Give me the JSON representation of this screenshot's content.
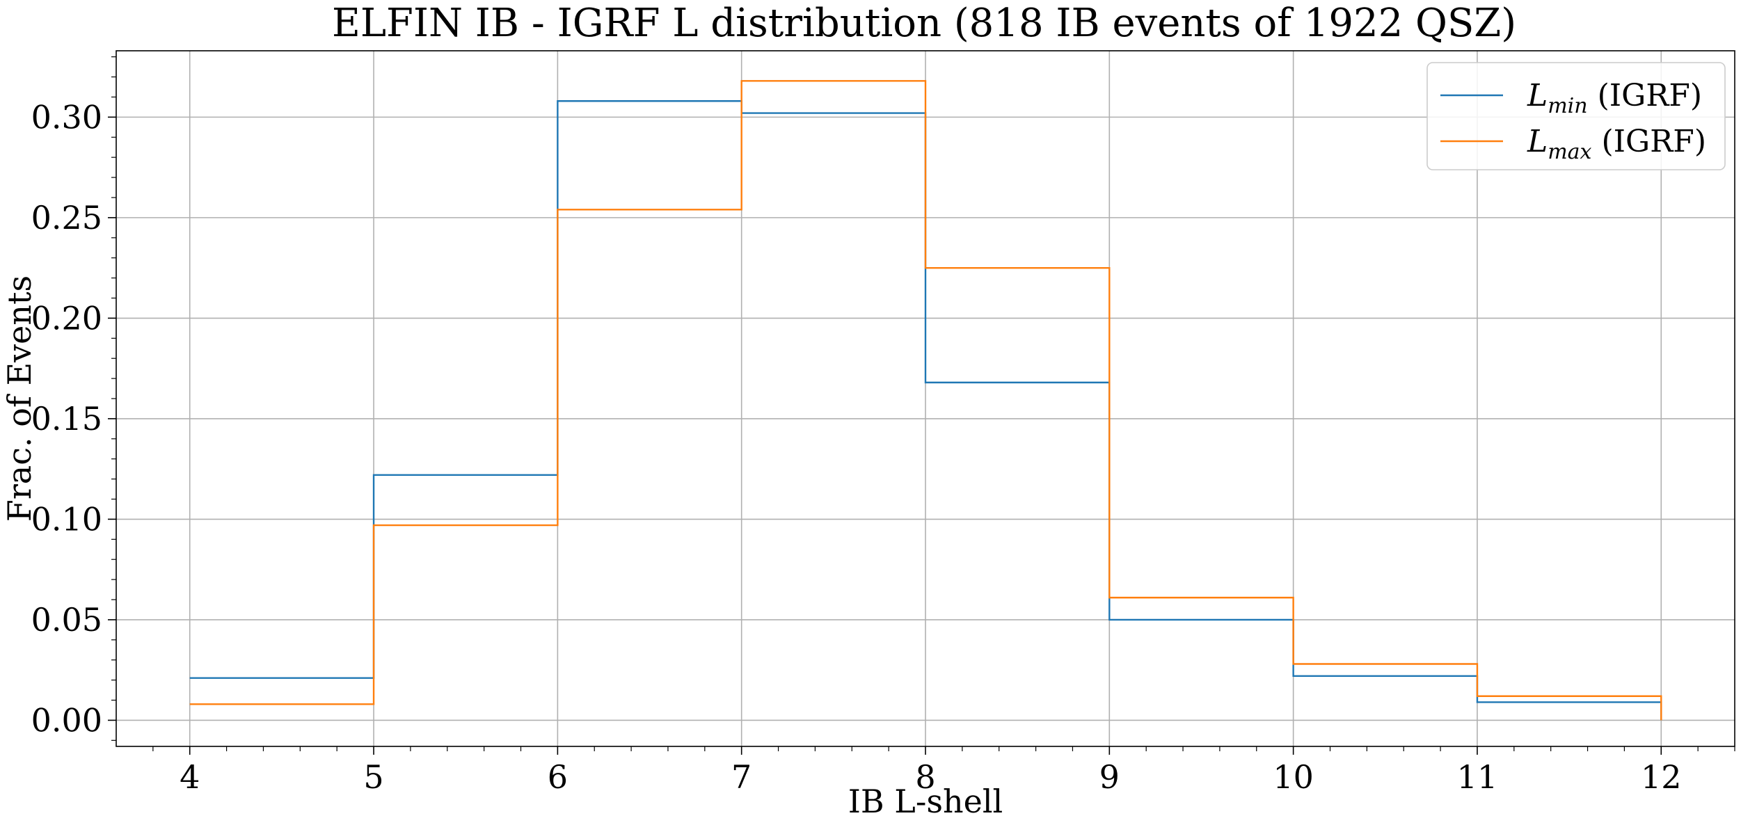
{
  "chart_data": {
    "type": "line",
    "subtype": "step-histogram",
    "title": "ELFIN IB - IGRF L distribution (818 IB events of 1922 QSZ)",
    "xlabel": "IB L-shell",
    "ylabel": "Frac. of Events",
    "xlim": [
      3.6,
      12.4
    ],
    "ylim": [
      -0.013,
      0.333
    ],
    "xticks": [
      4,
      5,
      6,
      7,
      8,
      9,
      10,
      11,
      12
    ],
    "xtick_labels": [
      "4",
      "5",
      "6",
      "7",
      "8",
      "9",
      "10",
      "11",
      "12"
    ],
    "yticks": [
      0.0,
      0.05,
      0.1,
      0.15,
      0.2,
      0.25,
      0.3
    ],
    "ytick_labels": [
      "0.00",
      "0.05",
      "0.10",
      "0.15",
      "0.20",
      "0.25",
      "0.30"
    ],
    "grid": true,
    "legend_position": "top-right",
    "bin_edges": [
      4,
      5,
      6,
      7,
      8,
      9,
      10,
      11,
      12
    ],
    "series": [
      {
        "name_main": "L",
        "name_sub": "min",
        "name_suffix": " (IGRF)",
        "color": "#1f77b4",
        "values": [
          0.021,
          0.122,
          0.308,
          0.302,
          0.168,
          0.05,
          0.022,
          0.009
        ]
      },
      {
        "name_main": "L",
        "name_sub": "max",
        "name_suffix": " (IGRF)",
        "color": "#ff7f0e",
        "values": [
          0.008,
          0.097,
          0.254,
          0.318,
          0.225,
          0.061,
          0.028,
          0.012
        ]
      }
    ]
  }
}
